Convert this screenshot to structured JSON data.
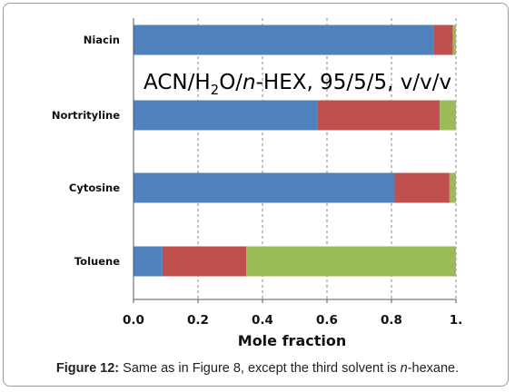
{
  "chart_data": {
    "type": "bar",
    "orientation": "horizontal",
    "stacked": true,
    "categories": [
      "Niacin",
      "Nortrityline",
      "Cytosine",
      "Toluene"
    ],
    "series": [
      {
        "color": "#4f81bd",
        "values": [
          0.93,
          0.57,
          0.81,
          0.09
        ]
      },
      {
        "color": "#c0504d",
        "values": [
          0.06,
          0.38,
          0.17,
          0.26
        ]
      },
      {
        "color": "#9bbb59",
        "values": [
          0.01,
          0.05,
          0.02,
          0.65
        ]
      }
    ],
    "xlim": [
      0,
      1.0
    ],
    "xticks": [
      {
        "value": 0.0,
        "label": "0.0"
      },
      {
        "value": 0.2,
        "label": "0.2"
      },
      {
        "value": 0.4,
        "label": "0.4"
      },
      {
        "value": 0.6,
        "label": "0.6"
      },
      {
        "value": 0.8,
        "label": "0.8"
      },
      {
        "value": 1.0,
        "label": "1."
      }
    ],
    "xlabel": "Mole fraction",
    "ylabel": "",
    "grid": "vertical dashed",
    "annotation": {
      "parts": [
        {
          "text": "ACN/H"
        },
        {
          "text": "2",
          "sub": true
        },
        {
          "text": "O/"
        },
        {
          "text": "n",
          "italic": true
        },
        {
          "text": "-HEX, 95/5/5, v/v/v"
        }
      ]
    }
  },
  "caption": {
    "label": "Figure 12:",
    "text_before": " Same as in Figure 8, except the third solvent is ",
    "italic": "n",
    "text_after": "-hexane."
  }
}
